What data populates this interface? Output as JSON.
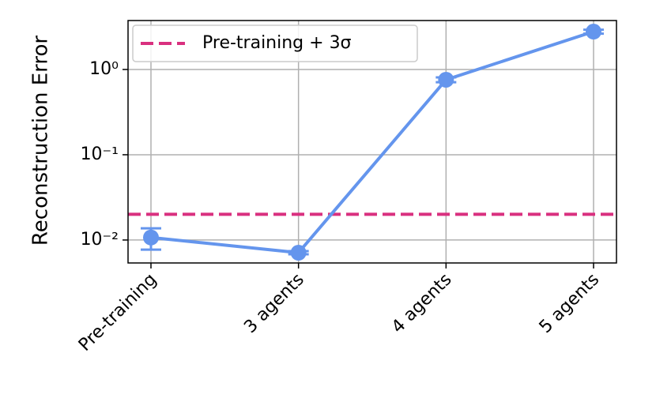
{
  "chart_data": {
    "type": "line",
    "ylabel": "Reconstruction Error",
    "categories": [
      "Pre-training",
      "3 agents",
      "4 agents",
      "5 agents"
    ],
    "series": [
      {
        "color": "#6495ed",
        "values": [
          0.0107,
          0.0071,
          0.758,
          2.78
        ],
        "errors": [
          0.003,
          0.0003,
          0.05,
          0.15
        ]
      }
    ],
    "hlines": [
      {
        "name": "Pre-training + 3σ",
        "value": 0.02,
        "color": "#d9307f",
        "style": "dashed"
      }
    ],
    "ylim": [
      0.00538,
      3.75
    ],
    "log_y": true,
    "yticks": [
      {
        "value": 0.01,
        "label": "10⁻²"
      },
      {
        "value": 0.1,
        "label": "10⁻¹"
      },
      {
        "value": 1,
        "label": "10⁰"
      }
    ],
    "grid": true,
    "legend": "upper left"
  }
}
